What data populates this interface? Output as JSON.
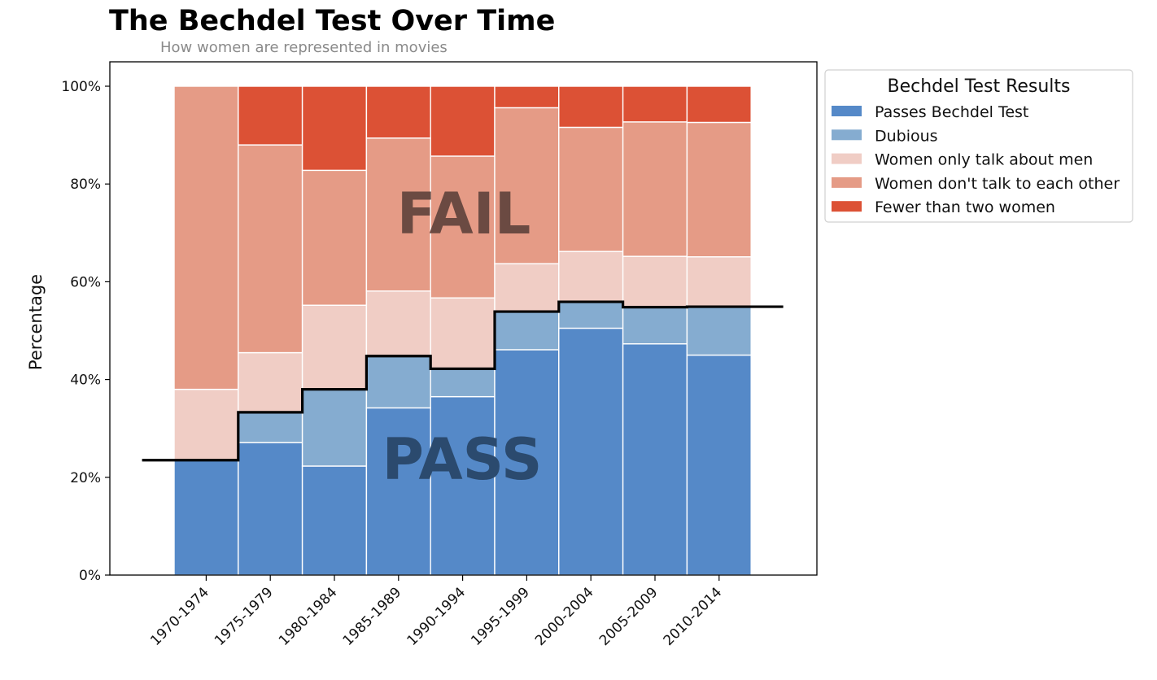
{
  "colors": {
    "pass": "#5589c8",
    "dubious": "#85acd0",
    "men": "#f0cdc5",
    "notalk": "#e59b86",
    "fewer": "#dc5135",
    "pass_line": "#000000",
    "fail_text": "#6b4a42",
    "pass_text": "#2b4a6e"
  },
  "chart_data": {
    "type": "bar",
    "stacked": true,
    "title": "The Bechdel Test Over Time",
    "subtitle": "How women are represented in movies",
    "xlabel": "",
    "ylabel": "Percentage",
    "ylim": [
      0,
      105
    ],
    "yticks": [
      "0%",
      "20%",
      "40%",
      "60%",
      "80%",
      "100%"
    ],
    "ytick_values": [
      0,
      20,
      40,
      60,
      80,
      100
    ],
    "categories": [
      "1970-1974",
      "1975-1979",
      "1980-1984",
      "1985-1989",
      "1990-1994",
      "1995-1999",
      "2000-2004",
      "2005-2009",
      "2010-2014"
    ],
    "series": [
      {
        "name": "Passes Bechdel Test",
        "key": "pass",
        "values": [
          23.5,
          27.1,
          22.3,
          34.2,
          36.5,
          46.1,
          50.5,
          47.3,
          45.0
        ]
      },
      {
        "name": "Dubious",
        "key": "dubious",
        "values": [
          0.0,
          6.2,
          15.7,
          10.6,
          5.7,
          7.8,
          5.4,
          7.5,
          9.9
        ]
      },
      {
        "name": "Women only talk about men",
        "key": "men",
        "values": [
          14.5,
          12.2,
          17.2,
          13.3,
          14.5,
          9.8,
          10.3,
          10.4,
          10.2
        ]
      },
      {
        "name": "Women don't talk to each other",
        "key": "notalk",
        "values": [
          62.0,
          42.5,
          27.6,
          31.3,
          29.0,
          31.9,
          25.4,
          27.5,
          27.5
        ]
      },
      {
        "name": "Fewer than two women",
        "key": "fewer",
        "values": [
          0.0,
          12.0,
          17.2,
          10.6,
          14.3,
          4.4,
          8.4,
          7.3,
          7.4
        ]
      }
    ],
    "pass_line_values": [
      23.5,
      33.3,
      38.0,
      44.8,
      42.2,
      53.9,
      55.9,
      54.8,
      54.9
    ],
    "legend_title": "Bechdel Test Results",
    "legend_position": "upper left, outside right",
    "annotations": [
      "FAIL",
      "PASS"
    ],
    "grid": false
  }
}
